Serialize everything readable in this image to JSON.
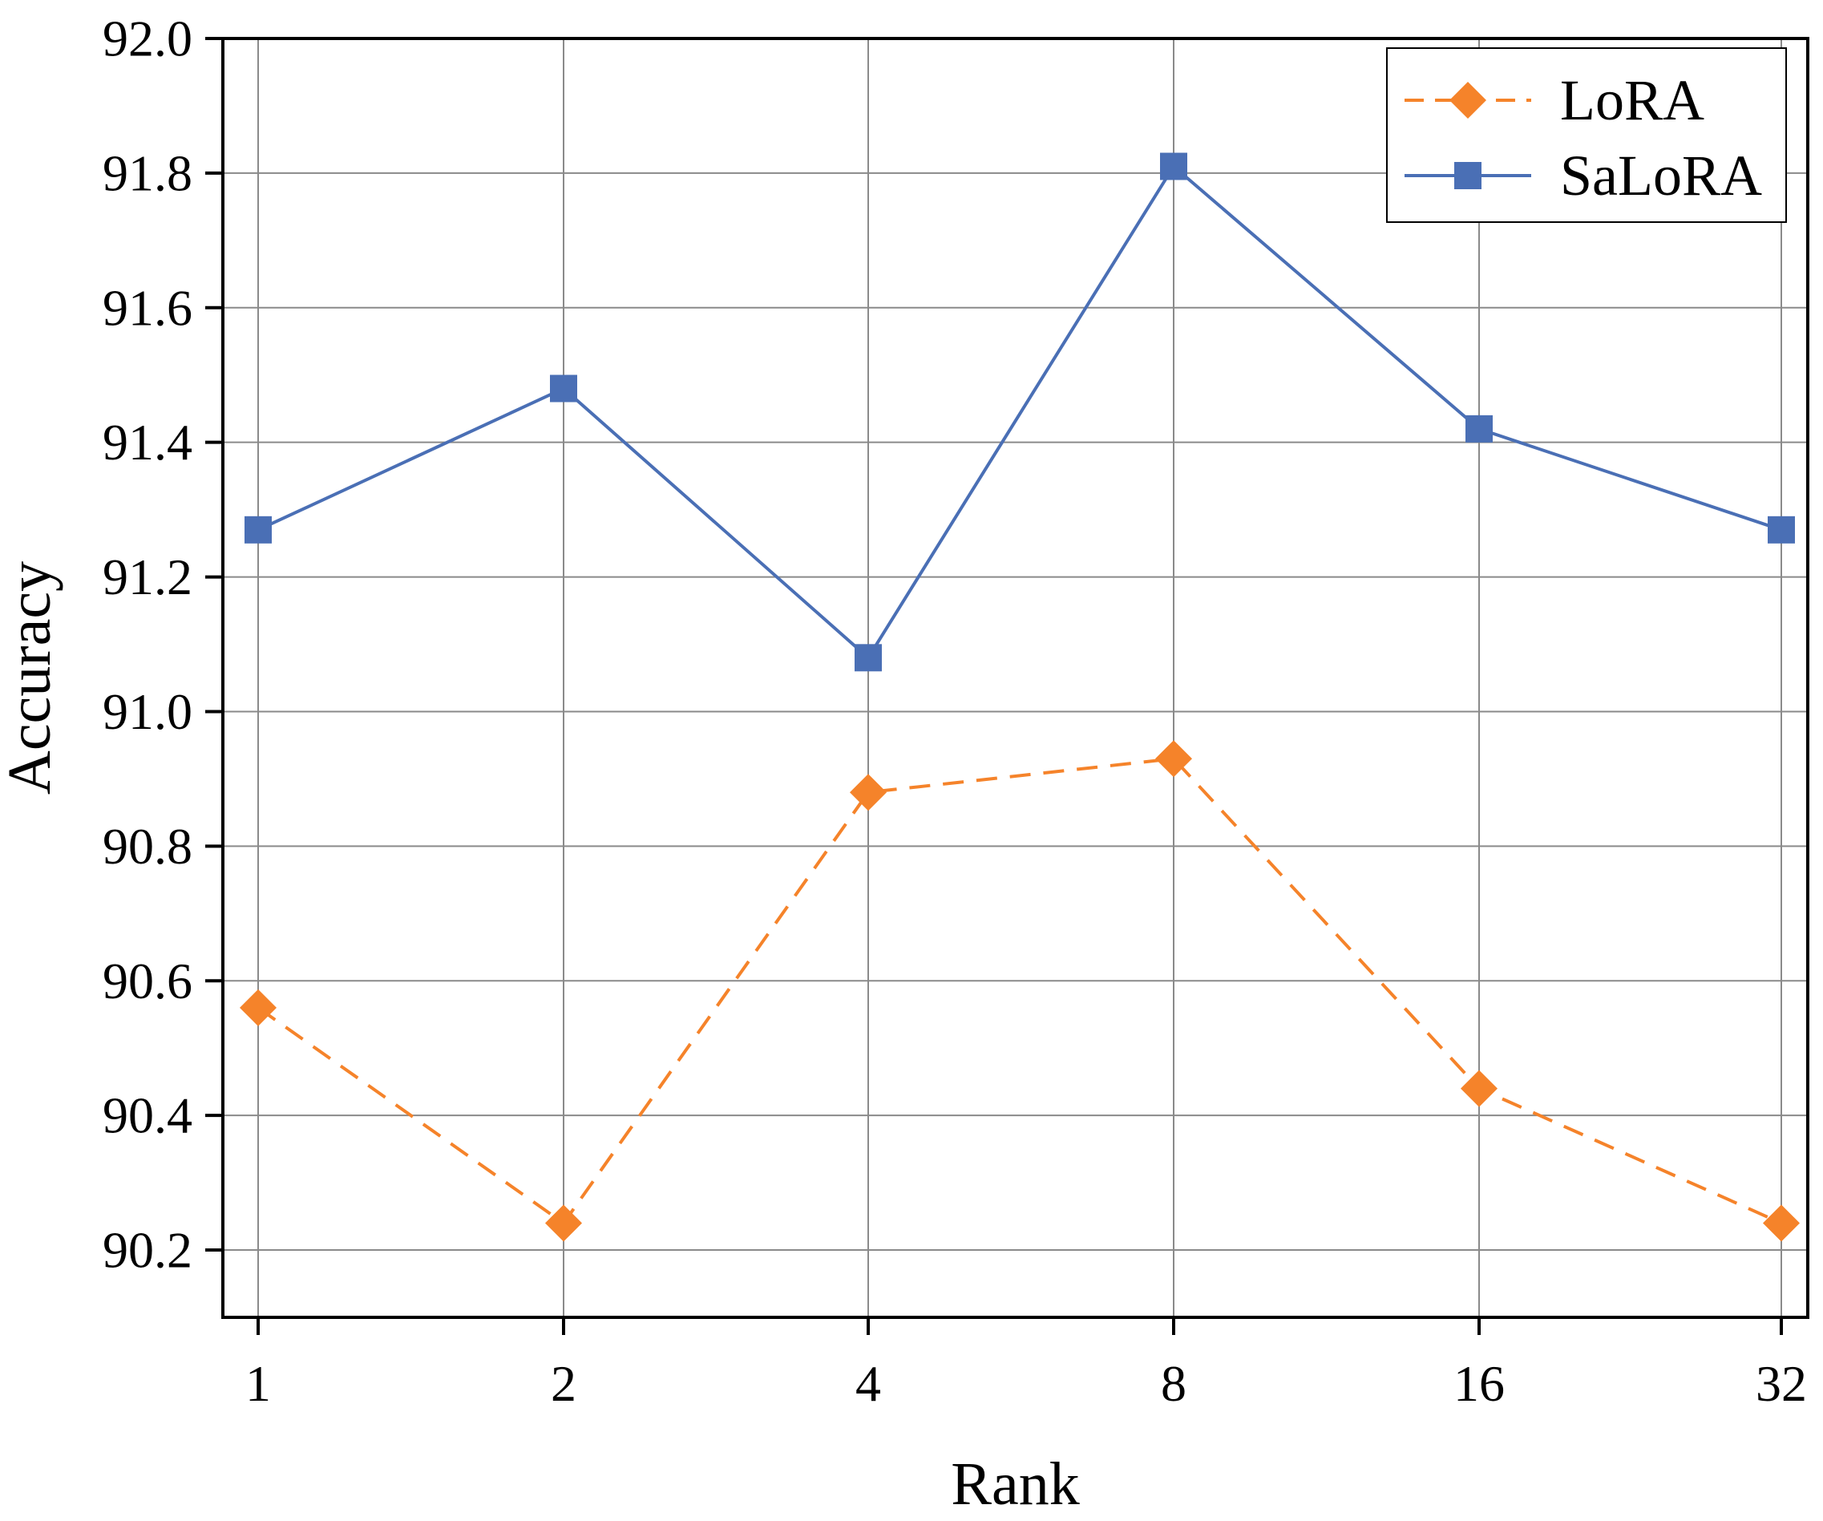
{
  "chart_data": {
    "type": "line",
    "title": "",
    "xlabel": "Rank",
    "ylabel": "Accuracy",
    "categories": [
      "1",
      "2",
      "4",
      "8",
      "16",
      "32"
    ],
    "ylim": [
      90.1,
      92.0
    ],
    "yticks": [
      "90.2",
      "90.4",
      "90.6",
      "90.8",
      "91.0",
      "91.2",
      "91.4",
      "91.6",
      "91.8",
      "92.0"
    ],
    "grid": true,
    "legend_position": "top-right",
    "series": [
      {
        "name": "LoRA",
        "values": [
          90.56,
          90.24,
          90.88,
          90.93,
          90.44,
          90.24
        ],
        "color": "#F5832A",
        "marker": "diamond",
        "line_style": "dashed"
      },
      {
        "name": "SaLoRA",
        "values": [
          91.27,
          91.48,
          91.08,
          91.81,
          91.42,
          91.27
        ],
        "color": "#4A6FB5",
        "marker": "square",
        "line_style": "solid"
      }
    ]
  }
}
